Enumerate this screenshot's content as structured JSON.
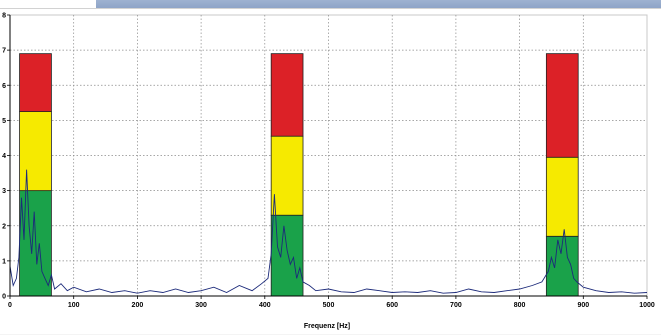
{
  "chart_data": {
    "type": "bar",
    "xlabel": "Frequenz [Hz]",
    "ylabel": "",
    "xlim": [
      0,
      1000
    ],
    "ylim": [
      0,
      8
    ],
    "x_ticks": [
      0,
      100,
      200,
      300,
      400,
      500,
      600,
      700,
      800,
      900,
      1000
    ],
    "y_ticks": [
      0,
      1,
      2,
      3,
      4,
      5,
      6,
      7,
      8
    ],
    "grid": true,
    "bars": [
      {
        "x_start": 15,
        "x_end": 65,
        "green": 3.0,
        "yellow_top": 5.25,
        "red_top": 6.9
      },
      {
        "x_start": 410,
        "x_end": 460,
        "green": 2.3,
        "yellow_top": 4.55,
        "red_top": 6.9
      },
      {
        "x_start": 842,
        "x_end": 892,
        "green": 1.7,
        "yellow_top": 3.95,
        "red_top": 6.9
      }
    ],
    "spectrum": {
      "name": "",
      "x": [
        0,
        5,
        10,
        14,
        18,
        22,
        26,
        30,
        34,
        38,
        42,
        46,
        50,
        55,
        60,
        65,
        70,
        80,
        90,
        100,
        120,
        140,
        160,
        180,
        200,
        220,
        240,
        260,
        280,
        300,
        320,
        340,
        360,
        380,
        395,
        405,
        410,
        415,
        420,
        425,
        430,
        435,
        440,
        445,
        450,
        455,
        460,
        470,
        480,
        500,
        520,
        540,
        560,
        580,
        600,
        620,
        640,
        660,
        680,
        700,
        720,
        740,
        760,
        780,
        800,
        820,
        835,
        845,
        850,
        855,
        860,
        865,
        870,
        875,
        880,
        885,
        890,
        900,
        920,
        940,
        960,
        980,
        1000
      ],
      "y": [
        0.85,
        0.3,
        0.5,
        1.1,
        2.8,
        1.6,
        3.6,
        2.0,
        1.2,
        2.4,
        0.9,
        1.5,
        0.7,
        0.5,
        0.3,
        0.6,
        0.2,
        0.35,
        0.15,
        0.25,
        0.12,
        0.2,
        0.1,
        0.15,
        0.08,
        0.15,
        0.1,
        0.2,
        0.1,
        0.15,
        0.25,
        0.1,
        0.3,
        0.15,
        0.35,
        0.5,
        1.2,
        2.9,
        1.4,
        1.1,
        2.0,
        1.3,
        0.9,
        1.1,
        0.5,
        0.8,
        0.4,
        0.3,
        0.15,
        0.2,
        0.12,
        0.1,
        0.2,
        0.15,
        0.1,
        0.12,
        0.1,
        0.15,
        0.08,
        0.1,
        0.2,
        0.12,
        0.1,
        0.15,
        0.2,
        0.3,
        0.4,
        0.7,
        1.1,
        0.8,
        1.6,
        1.2,
        1.9,
        1.1,
        0.9,
        0.5,
        0.4,
        0.25,
        0.15,
        0.1,
        0.12,
        0.08,
        0.1
      ]
    },
    "colors": {
      "green": "#1aa24a",
      "yellow": "#f6ea00",
      "red": "#dc2127",
      "spectrum": "#1c2a7a",
      "grid": "#8a8a8a"
    }
  }
}
